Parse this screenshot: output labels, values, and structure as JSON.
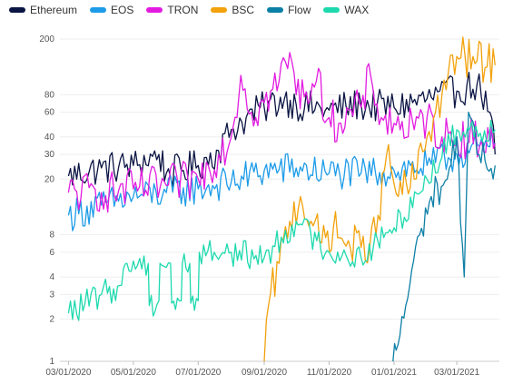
{
  "chart_data": {
    "type": "line",
    "y_scale": "log",
    "ylim": [
      1,
      250
    ],
    "y_ticks": [
      1,
      2,
      3,
      4,
      6,
      8,
      20,
      30,
      40,
      60,
      80,
      200
    ],
    "x_range": [
      "2020-02-22",
      "2021-04-10"
    ],
    "x_ticks": [
      {
        "date": "2020-03-01",
        "label": "03/01/2020"
      },
      {
        "date": "2020-05-01",
        "label": "05/01/2020"
      },
      {
        "date": "2020-07-01",
        "label": "07/01/2020"
      },
      {
        "date": "2020-09-01",
        "label": "09/01/2020"
      },
      {
        "date": "2020-11-01",
        "label": "11/01/2020"
      },
      {
        "date": "2021-01-01",
        "label": "01/01/2021"
      },
      {
        "date": "2021-03-01",
        "label": "03/01/2021"
      }
    ],
    "grid": true,
    "legend_position": "top-left",
    "series": [
      {
        "name": "Ethereum",
        "color": "#0b1544",
        "noise": 0.12,
        "points": [
          [
            "2020-03-01",
            21
          ],
          [
            "2020-04-01",
            24
          ],
          [
            "2020-05-01",
            25
          ],
          [
            "2020-05-25",
            30
          ],
          [
            "2020-06-01",
            22
          ],
          [
            "2020-07-01",
            25
          ],
          [
            "2020-07-20",
            32
          ],
          [
            "2020-08-01",
            45
          ],
          [
            "2020-08-15",
            55
          ],
          [
            "2020-09-01",
            65
          ],
          [
            "2020-09-20",
            75
          ],
          [
            "2020-10-01",
            68
          ],
          [
            "2020-11-01",
            62
          ],
          [
            "2020-12-01",
            68
          ],
          [
            "2021-01-01",
            65
          ],
          [
            "2021-02-01",
            75
          ],
          [
            "2021-03-01",
            85
          ],
          [
            "2021-03-20",
            95
          ],
          [
            "2021-04-01",
            60
          ],
          [
            "2021-04-06",
            30
          ]
        ]
      },
      {
        "name": "EOS",
        "color": "#1d9be8",
        "noise": 0.12,
        "points": [
          [
            "2020-03-01",
            11
          ],
          [
            "2020-04-01",
            13
          ],
          [
            "2020-05-01",
            15
          ],
          [
            "2020-06-01",
            16
          ],
          [
            "2020-07-01",
            17
          ],
          [
            "2020-08-01",
            19
          ],
          [
            "2020-09-01",
            23
          ],
          [
            "2020-10-01",
            24
          ],
          [
            "2020-11-01",
            22
          ],
          [
            "2020-12-01",
            22
          ],
          [
            "2021-01-01",
            23
          ],
          [
            "2021-02-01",
            25
          ],
          [
            "2021-03-01",
            30
          ],
          [
            "2021-04-01",
            34
          ],
          [
            "2021-04-06",
            36
          ]
        ]
      },
      {
        "name": "TRON",
        "color": "#e21be0",
        "noise": 0.15,
        "points": [
          [
            "2020-03-01",
            16
          ],
          [
            "2020-04-01",
            16
          ],
          [
            "2020-05-01",
            17
          ],
          [
            "2020-06-01",
            18
          ],
          [
            "2020-07-01",
            20
          ],
          [
            "2020-07-20",
            30
          ],
          [
            "2020-08-01",
            40
          ],
          [
            "2020-08-10",
            110
          ],
          [
            "2020-08-20",
            60
          ],
          [
            "2020-09-01",
            70
          ],
          [
            "2020-09-15",
            100
          ],
          [
            "2020-09-25",
            160
          ],
          [
            "2020-10-01",
            80
          ],
          [
            "2020-10-20",
            100
          ],
          [
            "2020-11-01",
            55
          ],
          [
            "2020-11-10",
            50
          ],
          [
            "2020-12-01",
            65
          ],
          [
            "2020-12-10",
            110
          ],
          [
            "2020-12-20",
            55
          ],
          [
            "2021-01-01",
            50
          ],
          [
            "2021-01-20",
            45
          ],
          [
            "2021-02-01",
            55
          ],
          [
            "2021-02-15",
            40
          ],
          [
            "2021-03-01",
            40
          ],
          [
            "2021-04-01",
            38
          ],
          [
            "2021-04-06",
            36
          ]
        ]
      },
      {
        "name": "BSC",
        "color": "#f2a20c",
        "noise": 0.15,
        "points": [
          [
            "2020-09-01",
            1
          ],
          [
            "2020-09-05",
            2.5
          ],
          [
            "2020-09-15",
            5
          ],
          [
            "2020-09-25",
            10
          ],
          [
            "2020-10-05",
            15
          ],
          [
            "2020-10-15",
            10
          ],
          [
            "2020-10-25",
            7
          ],
          [
            "2020-11-05",
            9
          ],
          [
            "2020-11-15",
            7
          ],
          [
            "2020-12-01",
            6.5
          ],
          [
            "2020-12-15",
            8
          ],
          [
            "2020-12-25",
            30
          ],
          [
            "2021-01-05",
            15
          ],
          [
            "2021-01-20",
            20
          ],
          [
            "2021-02-01",
            40
          ],
          [
            "2021-02-15",
            80
          ],
          [
            "2021-03-01",
            150
          ],
          [
            "2021-03-20",
            140
          ],
          [
            "2021-04-06",
            130
          ]
        ]
      },
      {
        "name": "Flow",
        "color": "#0c7fa6",
        "noise": 0.12,
        "points": [
          [
            "2020-12-31",
            1
          ],
          [
            "2021-01-03",
            1.2
          ],
          [
            "2021-01-12",
            2.5
          ],
          [
            "2021-01-25",
            8
          ],
          [
            "2021-02-05",
            15
          ],
          [
            "2021-02-20",
            20
          ],
          [
            "2021-03-01",
            40
          ],
          [
            "2021-03-08",
            4
          ],
          [
            "2021-03-12",
            60
          ],
          [
            "2021-03-20",
            30
          ],
          [
            "2021-04-06",
            25
          ]
        ]
      },
      {
        "name": "WAX",
        "color": "#1ed9ae",
        "noise": 0.1,
        "points": [
          [
            "2020-03-01",
            2.2
          ],
          [
            "2020-04-01",
            3.0
          ],
          [
            "2020-04-20",
            3.5
          ],
          [
            "2020-04-25",
            5.0
          ],
          [
            "2020-05-15",
            5.0
          ],
          [
            "2020-05-16",
            2.5
          ],
          [
            "2020-05-25",
            2.7
          ],
          [
            "2020-05-26",
            5.0
          ],
          [
            "2020-06-05",
            5.0
          ],
          [
            "2020-06-06",
            2.6
          ],
          [
            "2020-06-15",
            2.7
          ],
          [
            "2020-06-16",
            5.0
          ],
          [
            "2020-06-23",
            5.0
          ],
          [
            "2020-06-24",
            2.6
          ],
          [
            "2020-07-01",
            2.7
          ],
          [
            "2020-07-02",
            6.0
          ],
          [
            "2020-08-01",
            6.0
          ],
          [
            "2020-09-01",
            5.5
          ],
          [
            "2020-10-01",
            10
          ],
          [
            "2020-11-01",
            6.0
          ],
          [
            "2020-12-01",
            5.5
          ],
          [
            "2021-01-01",
            9
          ],
          [
            "2021-02-01",
            20
          ],
          [
            "2021-03-01",
            45
          ],
          [
            "2021-04-06",
            45
          ]
        ]
      }
    ]
  }
}
